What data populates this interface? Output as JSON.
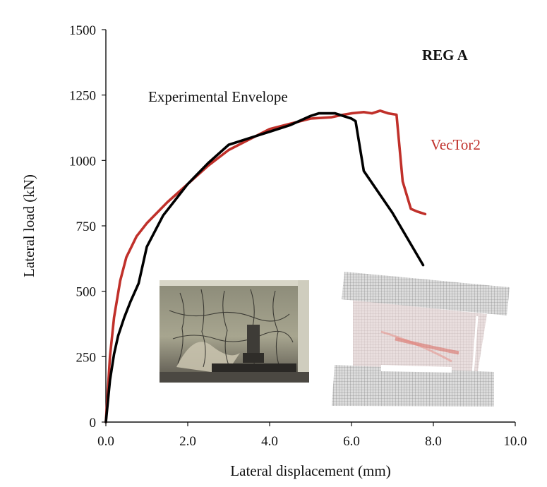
{
  "chart_data": {
    "type": "line",
    "title": "",
    "xlabel": "Lateral displacement (mm)",
    "ylabel": "Lateral load (kN)",
    "xlim": [
      0,
      10
    ],
    "ylim": [
      0,
      1500
    ],
    "xticks": [
      0,
      2,
      4,
      6,
      8,
      10
    ],
    "xtick_labels": [
      "0.0",
      "2.0",
      "4.0",
      "6.0",
      "8.0",
      "10.0"
    ],
    "yticks": [
      0,
      250,
      500,
      750,
      1000,
      1250,
      1500
    ],
    "ytick_labels": [
      "0",
      "250",
      "500",
      "750",
      "1000",
      "1250",
      "1500"
    ],
    "grid": false,
    "series": [
      {
        "name": "Experimental Envelope",
        "color": "#000000",
        "x": [
          0,
          0.1,
          0.2,
          0.3,
          0.45,
          0.6,
          0.8,
          1.0,
          1.4,
          2.0,
          2.5,
          3.0,
          3.5,
          4.0,
          4.5,
          5.0,
          5.2,
          5.6,
          6.0,
          6.1,
          6.3,
          7.0,
          7.75
        ],
        "y": [
          0,
          160,
          260,
          330,
          400,
          460,
          530,
          670,
          790,
          910,
          990,
          1060,
          1085,
          1110,
          1135,
          1170,
          1180,
          1180,
          1160,
          1150,
          960,
          800,
          600
        ]
      },
      {
        "name": "VecTor2",
        "color": "#c0302a",
        "x": [
          0,
          0.1,
          0.2,
          0.35,
          0.5,
          0.75,
          1.0,
          1.5,
          2.0,
          2.5,
          3.0,
          3.5,
          4.0,
          4.5,
          5.0,
          5.5,
          5.8,
          6.0,
          6.3,
          6.5,
          6.7,
          6.9,
          7.1,
          7.25,
          7.45,
          7.6,
          7.8
        ],
        "y": [
          0,
          250,
          400,
          540,
          630,
          710,
          760,
          840,
          910,
          980,
          1040,
          1080,
          1120,
          1140,
          1160,
          1165,
          1175,
          1180,
          1185,
          1180,
          1190,
          1180,
          1175,
          920,
          815,
          805,
          795
        ]
      }
    ],
    "annotations": [
      {
        "text": "REG A",
        "color": "#111111"
      },
      {
        "text": "Experimental Envelope",
        "color": "#111111"
      },
      {
        "text": "VecTor2",
        "color": "#c0302a"
      }
    ],
    "insets": [
      {
        "kind": "photo",
        "subject": "cracked-wall-specimen"
      },
      {
        "kind": "finite-element-mesh",
        "subject": "deformed-wall-model"
      }
    ]
  }
}
